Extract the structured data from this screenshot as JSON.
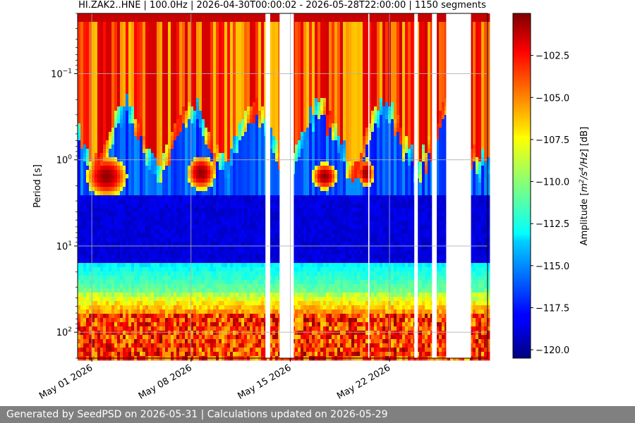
{
  "chart_data": {
    "type": "heatmap",
    "title": "HI.ZAK2..HNE | 100.0Hz | 2026-04-30T00:00:02 - 2026-05-28T22:00:00 | 1150 segments",
    "ylabel": "Period [s]",
    "y_scale": "log",
    "y_inverted": true,
    "ylim": [
      0.02,
      200
    ],
    "y_ticks": [
      {
        "value": 0.1,
        "base": "10",
        "exp": "−1"
      },
      {
        "value": 1,
        "base": "10",
        "exp": "0"
      },
      {
        "value": 10,
        "base": "10",
        "exp": "1"
      },
      {
        "value": 100,
        "base": "10",
        "exp": "2"
      }
    ],
    "x_type": "date",
    "xlim": [
      "2026-04-30T00:00:02",
      "2026-05-28T22:00:00"
    ],
    "x_ticks": [
      {
        "value": "2026-05-01",
        "label": "May 01 2026"
      },
      {
        "value": "2026-05-08",
        "label": "May 08 2026"
      },
      {
        "value": "2026-05-15",
        "label": "May 15 2026"
      },
      {
        "value": "2026-05-22",
        "label": "May 22 2026"
      }
    ],
    "data_gaps": [
      [
        "2026-05-13T06:00",
        "2026-05-13T14:00"
      ],
      [
        "2026-05-14T06:00",
        "2026-05-15T06:00"
      ],
      [
        "2026-05-20T12:00",
        "2026-05-20T14:00"
      ],
      [
        "2026-05-23T18:00",
        "2026-05-24T00:00"
      ],
      [
        "2026-05-25T00:00",
        "2026-05-25T08:00"
      ],
      [
        "2026-05-26T00:00",
        "2026-05-27T18:00"
      ]
    ],
    "colorbar": {
      "label_parts": [
        "Amplitude [",
        "m",
        "2",
        "/s",
        "4",
        "/Hz",
        "] [dB]"
      ],
      "min": -120.5,
      "max": -100.0,
      "ticks": [
        -102.5,
        -105.0,
        -107.5,
        -110.0,
        -112.5,
        -115.0,
        -117.5,
        -120.0
      ],
      "tick_labels": [
        "−102.5",
        "−105.0",
        "−107.5",
        "−110.0",
        "−112.5",
        "−115.0",
        "−117.5",
        "−120.0"
      ],
      "colormap": "jet"
    },
    "grid": true
  },
  "footer": "Generated by SeedPSD on 2026-05-31 | Calculations updated on 2026-05-29",
  "colors": {
    "footer_bg": "#808080",
    "footer_text": "#ffffff",
    "grid": "#b0b0b0"
  }
}
